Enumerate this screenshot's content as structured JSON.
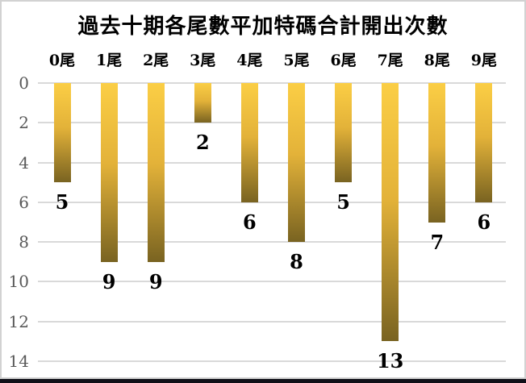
{
  "window": {
    "background": "#FFFFFF",
    "frame_border_color": "#D2D2D2",
    "bottom_strip_color": "#101018"
  },
  "chart_data": {
    "type": "bar",
    "orientation": "vertical-downward",
    "title": "過去十期各尾數平加特碼合計開出次數",
    "categories": [
      "0尾",
      "1尾",
      "2尾",
      "3尾",
      "4尾",
      "5尾",
      "6尾",
      "7尾",
      "8尾",
      "9尾"
    ],
    "values": [
      5,
      9,
      9,
      2,
      6,
      8,
      5,
      13,
      7,
      6
    ],
    "data_labels": [
      "5",
      "9",
      "9",
      "2",
      "6",
      "8",
      "5",
      "13",
      "7",
      "6"
    ],
    "xlabel": "",
    "ylabel": "",
    "y_axis": {
      "ticks": [
        0,
        2,
        4,
        6,
        8,
        10,
        12,
        14
      ],
      "min": 0,
      "max": 14,
      "inverted": true
    },
    "grid": true,
    "legend": false,
    "colors": {
      "bar_gradient_top": "#FBCE45",
      "bar_gradient_mid": "#E3B239",
      "bar_gradient_bottom": "#796321",
      "gridline": "#D9D9D9",
      "tick_label": "#595959",
      "category_label": "#000000",
      "data_label": "#000000"
    }
  }
}
